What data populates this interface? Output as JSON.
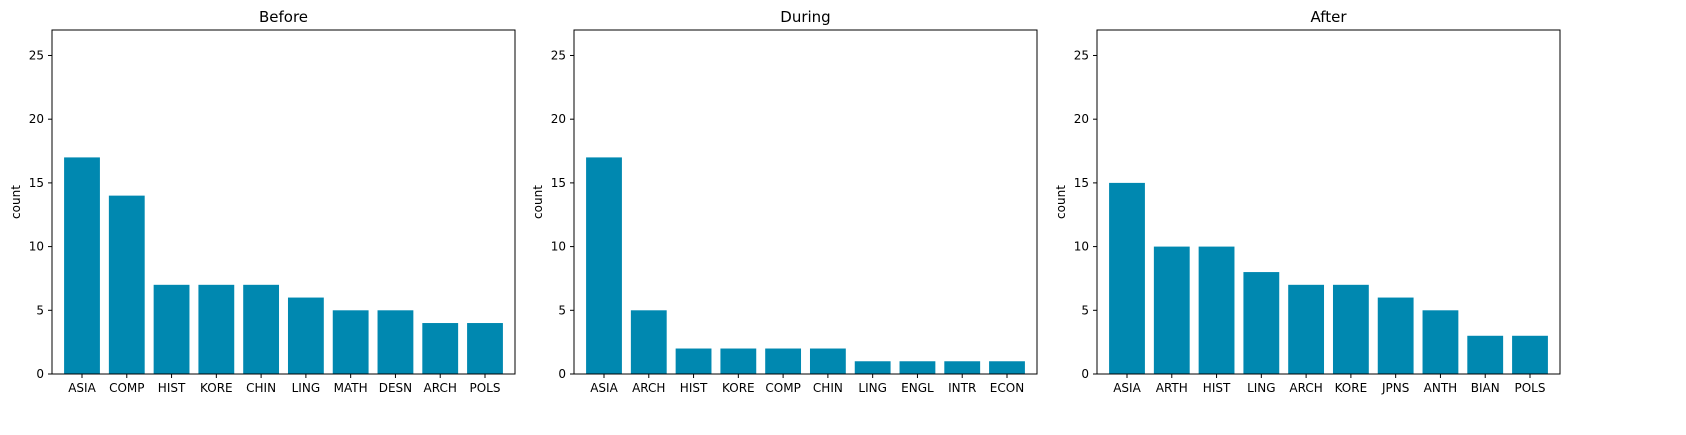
{
  "chart_data": [
    {
      "type": "bar",
      "title": "Before",
      "xlabel": "",
      "ylabel": "count",
      "ylim": [
        0,
        27
      ],
      "yticks": [
        0,
        5,
        10,
        15,
        20,
        25
      ],
      "categories": [
        "ASIA",
        "COMP",
        "HIST",
        "KORE",
        "CHIN",
        "LING",
        "MATH",
        "DESN",
        "ARCH",
        "POLS"
      ],
      "values": [
        17,
        14,
        7,
        7,
        7,
        6,
        5,
        5,
        4,
        4
      ],
      "color": "#0088b0",
      "grid": false
    },
    {
      "type": "bar",
      "title": "During",
      "xlabel": "",
      "ylabel": "count",
      "ylim": [
        0,
        27
      ],
      "yticks": [
        0,
        5,
        10,
        15,
        20,
        25
      ],
      "categories": [
        "ASIA",
        "ARCH",
        "HIST",
        "KORE",
        "COMP",
        "CHIN",
        "LING",
        "ENGL",
        "INTR",
        "ECON"
      ],
      "values": [
        17,
        5,
        2,
        2,
        2,
        2,
        1,
        1,
        1,
        1
      ],
      "color": "#0088b0",
      "grid": false
    },
    {
      "type": "bar",
      "title": "After",
      "xlabel": "",
      "ylabel": "count",
      "ylim": [
        0,
        27
      ],
      "yticks": [
        0,
        5,
        10,
        15,
        20,
        25
      ],
      "categories": [
        "ASIA",
        "ARTH",
        "HIST",
        "LING",
        "ARCH",
        "KORE",
        "JPNS",
        "ANTH",
        "BIAN",
        "POLS"
      ],
      "values": [
        15,
        10,
        10,
        8,
        7,
        7,
        6,
        5,
        3,
        3
      ],
      "color": "#0088b0",
      "grid": false
    }
  ]
}
